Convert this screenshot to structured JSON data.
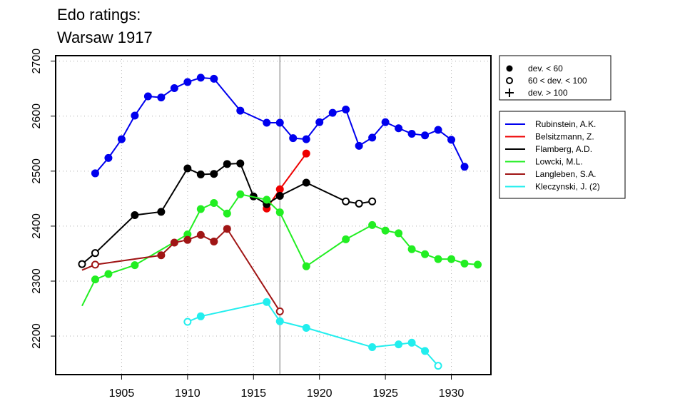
{
  "title_line1": "Edo ratings:",
  "title_line2": "Warsaw 1917",
  "chart_data": {
    "type": "line",
    "title": "Edo ratings: Warsaw 1917",
    "xlabel": "",
    "ylabel": "",
    "xlim": [
      1900,
      1933
    ],
    "ylim": [
      2130,
      2710
    ],
    "x_ticks": [
      1905,
      1910,
      1915,
      1920,
      1925,
      1930
    ],
    "y_ticks": [
      2200,
      2300,
      2400,
      2500,
      2600,
      2700
    ],
    "grid": true,
    "reference_line_x": 1917,
    "marker_legend": [
      {
        "symbol": "filled",
        "label": "dev. < 60"
      },
      {
        "symbol": "open",
        "label": "60 < dev. < 100"
      },
      {
        "symbol": "plus",
        "label": "dev. > 100"
      }
    ],
    "legend_position": "right",
    "series": [
      {
        "name": "Rubinstein, A.K.",
        "color": "#0000ee",
        "points": [
          [
            1903,
            2496,
            "filled"
          ],
          [
            1904,
            2524,
            "filled"
          ],
          [
            1905,
            2558,
            "filled"
          ],
          [
            1906,
            2601,
            "filled"
          ],
          [
            1907,
            2636,
            "filled"
          ],
          [
            1908,
            2634,
            "filled"
          ],
          [
            1909,
            2651,
            "filled"
          ],
          [
            1910,
            2662,
            "filled"
          ],
          [
            1911,
            2670,
            "filled"
          ],
          [
            1912,
            2668,
            "filled"
          ],
          [
            1914,
            2610,
            "filled"
          ],
          [
            1916,
            2588,
            "filled"
          ],
          [
            1917,
            2588,
            "filled"
          ],
          [
            1918,
            2560,
            "filled"
          ],
          [
            1919,
            2558,
            "filled"
          ],
          [
            1920,
            2589,
            "filled"
          ],
          [
            1921,
            2606,
            "filled"
          ],
          [
            1922,
            2612,
            "filled"
          ],
          [
            1923,
            2546,
            "filled"
          ],
          [
            1924,
            2561,
            "filled"
          ],
          [
            1925,
            2589,
            "filled"
          ],
          [
            1926,
            2578,
            "filled"
          ],
          [
            1927,
            2568,
            "filled"
          ],
          [
            1928,
            2565,
            "filled"
          ],
          [
            1929,
            2575,
            "filled"
          ],
          [
            1930,
            2557,
            "filled"
          ],
          [
            1931,
            2508,
            "filled"
          ]
        ]
      },
      {
        "name": "Belsitzmann, Z.",
        "color": "#ee0000",
        "points": [
          [
            1916,
            2432,
            "filled"
          ],
          [
            1917,
            2467,
            "filled"
          ],
          [
            1919,
            2532,
            "filled"
          ]
        ]
      },
      {
        "name": "Flamberg, A.D.",
        "color": "#000000",
        "points": [
          [
            1902,
            2331,
            "open"
          ],
          [
            1903,
            2351,
            "open"
          ],
          [
            1906,
            2420,
            "filled"
          ],
          [
            1908,
            2426,
            "filled"
          ],
          [
            1910,
            2505,
            "filled"
          ],
          [
            1911,
            2494,
            "filled"
          ],
          [
            1912,
            2495,
            "filled"
          ],
          [
            1913,
            2513,
            "filled"
          ],
          [
            1914,
            2514,
            "filled"
          ],
          [
            1915,
            2454,
            "filled"
          ],
          [
            1916,
            2440,
            "filled"
          ],
          [
            1917,
            2455,
            "filled"
          ],
          [
            1919,
            2479,
            "filled"
          ],
          [
            1922,
            2445,
            "open"
          ],
          [
            1923,
            2441,
            "open"
          ],
          [
            1924,
            2445,
            "open"
          ]
        ]
      },
      {
        "name": "Lowcki, M.L.",
        "color": "#22ee22",
        "points": [
          [
            1902,
            2255,
            "none"
          ],
          [
            1903,
            2303,
            "filled"
          ],
          [
            1904,
            2313,
            "filled"
          ],
          [
            1906,
            2329,
            "filled"
          ],
          [
            1910,
            2385,
            "filled"
          ],
          [
            1911,
            2431,
            "filled"
          ],
          [
            1912,
            2442,
            "filled"
          ],
          [
            1913,
            2423,
            "filled"
          ],
          [
            1914,
            2458,
            "filled"
          ],
          [
            1916,
            2448,
            "filled"
          ],
          [
            1917,
            2425,
            "filled"
          ],
          [
            1919,
            2327,
            "filled"
          ],
          [
            1922,
            2376,
            "filled"
          ],
          [
            1924,
            2402,
            "filled"
          ],
          [
            1925,
            2392,
            "filled"
          ],
          [
            1926,
            2387,
            "filled"
          ],
          [
            1927,
            2358,
            "filled"
          ],
          [
            1928,
            2349,
            "filled"
          ],
          [
            1929,
            2340,
            "filled"
          ],
          [
            1930,
            2340,
            "filled"
          ],
          [
            1931,
            2332,
            "filled"
          ],
          [
            1932,
            2330,
            "filled"
          ]
        ]
      },
      {
        "name": "Langleben, S.A.",
        "color": "#a01515",
        "points": [
          [
            1902,
            2320,
            "none"
          ],
          [
            1903,
            2330,
            "open"
          ],
          [
            1908,
            2347,
            "filled"
          ],
          [
            1909,
            2370,
            "filled"
          ],
          [
            1910,
            2375,
            "filled"
          ],
          [
            1911,
            2384,
            "filled"
          ],
          [
            1912,
            2372,
            "filled"
          ],
          [
            1913,
            2395,
            "filled"
          ],
          [
            1917,
            2245,
            "open"
          ]
        ]
      },
      {
        "name": "Kleczynski, J. (2)",
        "color": "#22eeee",
        "points": [
          [
            1910,
            2226,
            "open"
          ],
          [
            1911,
            2236,
            "filled"
          ],
          [
            1916,
            2262,
            "filled"
          ],
          [
            1917,
            2227,
            "filled"
          ],
          [
            1919,
            2215,
            "filled"
          ],
          [
            1924,
            2180,
            "filled"
          ],
          [
            1926,
            2185,
            "filled"
          ],
          [
            1927,
            2188,
            "filled"
          ],
          [
            1928,
            2173,
            "filled"
          ],
          [
            1929,
            2146,
            "open"
          ]
        ]
      }
    ]
  }
}
